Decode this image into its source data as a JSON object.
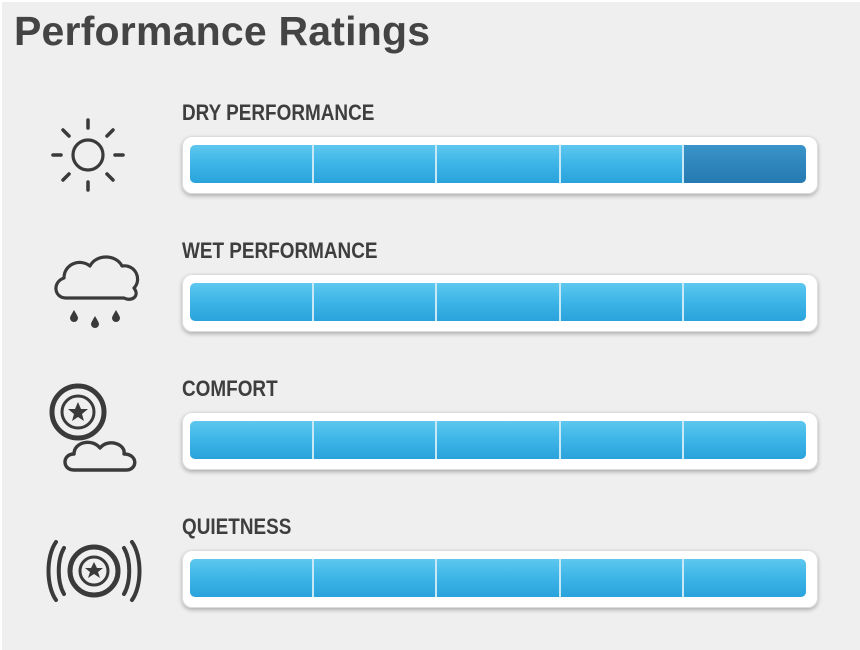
{
  "page": {
    "title": "Performance Ratings"
  },
  "colors": {
    "bar": "#3fb6e8",
    "bar_dark": "#2f86bd",
    "background": "#efefef",
    "text": "#3f3f3f"
  },
  "ratings": [
    {
      "label": "DRY PERFORMANCE",
      "icon": "sun-icon",
      "segments": 5,
      "dark_segment": 5
    },
    {
      "label": "WET PERFORMANCE",
      "icon": "rain-cloud-icon",
      "segments": 5,
      "dark_segment": null
    },
    {
      "label": "COMFORT",
      "icon": "tire-cloud-icon",
      "segments": 5,
      "dark_segment": null
    },
    {
      "label": "QUIETNESS",
      "icon": "tire-sound-waves-icon",
      "segments": 5,
      "dark_segment": null
    }
  ]
}
